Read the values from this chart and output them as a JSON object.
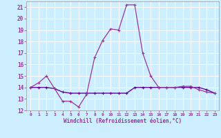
{
  "hours": [
    0,
    1,
    2,
    3,
    4,
    5,
    6,
    7,
    8,
    9,
    10,
    11,
    12,
    13,
    14,
    15,
    16,
    17,
    18,
    19,
    20,
    21,
    22,
    23
  ],
  "line1": [
    14.0,
    14.4,
    15.0,
    13.9,
    12.8,
    12.8,
    12.3,
    13.4,
    16.6,
    18.1,
    19.1,
    19.0,
    21.2,
    21.2,
    17.0,
    15.0,
    14.0,
    14.0,
    14.0,
    14.1,
    14.1,
    13.8,
    13.6,
    13.5
  ],
  "line2": [
    14.0,
    14.0,
    14.0,
    13.9,
    13.6,
    13.5,
    13.5,
    13.5,
    13.5,
    13.5,
    13.5,
    13.5,
    13.5,
    14.0,
    14.0,
    14.0,
    14.0,
    14.0,
    14.0,
    14.0,
    14.0,
    14.0,
    13.8,
    13.5
  ],
  "line_color1": "#993399",
  "line_color2": "#660099",
  "bg_color": "#cceeff",
  "grid_color": "#ffffff",
  "text_color": "#993399",
  "xlabel": "Windchill (Refroidissement éolien,°C)",
  "xlim": [
    -0.5,
    23.5
  ],
  "ylim": [
    12,
    21.5
  ],
  "yticks": [
    12,
    13,
    14,
    15,
    16,
    17,
    18,
    19,
    20,
    21
  ],
  "xticks": [
    0,
    1,
    2,
    3,
    4,
    5,
    6,
    7,
    8,
    9,
    10,
    11,
    12,
    13,
    14,
    15,
    16,
    17,
    18,
    19,
    20,
    21,
    22,
    23
  ]
}
